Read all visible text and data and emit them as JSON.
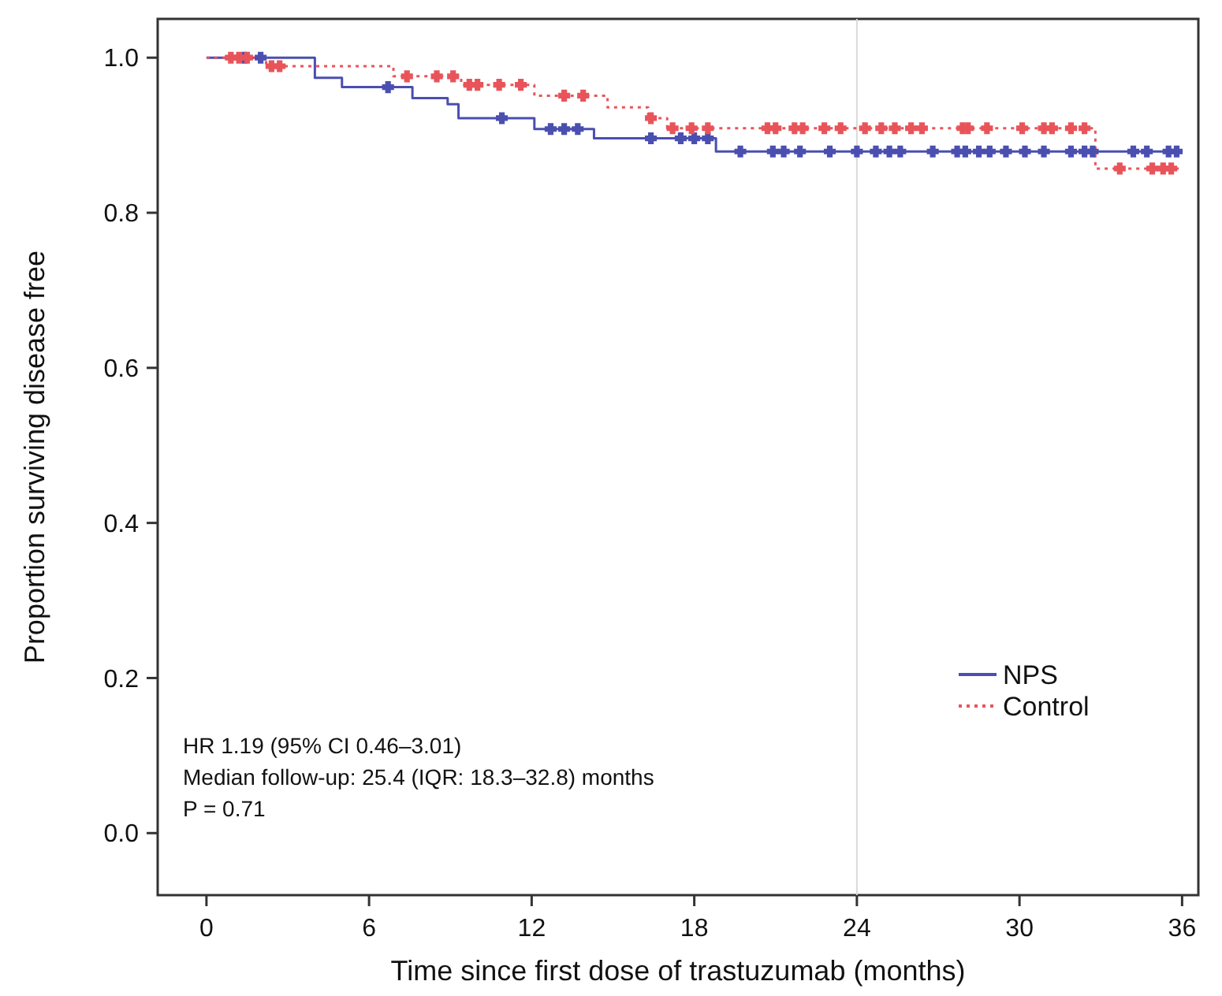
{
  "chart_data": {
    "type": "step",
    "xlabel": "Time since first dose of trastuzumab (months)",
    "ylabel": "Proportion surviving disease free",
    "xlim": [
      -1.8,
      36.6
    ],
    "xticks": [
      0,
      6,
      12,
      18,
      24,
      30,
      36
    ],
    "ylim": [
      -0.08,
      1.05
    ],
    "yticks": [
      {
        "value": 0,
        "label": "0.0"
      },
      {
        "value": 0.2,
        "label": "0.2"
      },
      {
        "value": 0.4,
        "label": "0.4"
      },
      {
        "value": 0.6,
        "label": "0.6"
      },
      {
        "value": 0.8,
        "label": "0.8"
      },
      {
        "value": 1,
        "label": "1.0"
      }
    ],
    "grid": false,
    "legend": "right",
    "ref_lines": [
      {
        "axis": "x",
        "value": 24,
        "color": "#d9d9d9"
      }
    ],
    "annotations": [
      "HR 1.19 (95% CI 0.46–3.01)",
      "Median follow-up: 25.4 (IQR: 18.3–32.8) months",
      "P = 0.71"
    ],
    "series": [
      {
        "name": "NPS",
        "color": "#4a4fb0",
        "line_style": "solid",
        "marker": "none",
        "x": [
          0,
          4.0,
          5.0,
          7.6,
          8.9,
          9.3,
          12.1,
          14.3,
          18.8,
          36
        ],
        "values": [
          1,
          0.974,
          0.962,
          0.948,
          0.94,
          0.922,
          0.908,
          0.896,
          0.879,
          0.879
        ]
      },
      {
        "name": "Control",
        "color": "#e8545a",
        "line_style": "dotted",
        "marker": "none",
        "x": [
          0,
          2.2,
          6.9,
          9.4,
          12.1,
          14.8,
          16.3,
          17.0,
          32.8,
          36
        ],
        "values": [
          1,
          0.989,
          0.976,
          0.965,
          0.951,
          0.936,
          0.922,
          0.909,
          0.857,
          0.857
        ]
      },
      {
        "type": "scatter",
        "color": "#4a4fb0",
        "marker": "cross",
        "x": [
          1.4,
          2.0,
          6.7,
          10.9,
          12.7,
          13.2,
          13.7,
          16.4,
          17.5,
          18.0,
          18.5,
          19.7,
          20.9,
          21.3,
          21.9,
          23.0,
          24.0,
          24.7,
          25.2,
          25.6,
          26.8,
          27.7,
          28.0,
          28.5,
          28.9,
          29.5,
          30.2,
          30.9,
          31.9,
          32.4,
          32.7,
          34.2,
          34.7,
          35.5,
          35.8
        ],
        "values": [
          1,
          1,
          0.962,
          0.922,
          0.908,
          0.908,
          0.908,
          0.896,
          0.896,
          0.896,
          0.896,
          0.879,
          0.879,
          0.879,
          0.879,
          0.879,
          0.879,
          0.879,
          0.879,
          0.879,
          0.879,
          0.879,
          0.879,
          0.879,
          0.879,
          0.879,
          0.879,
          0.879,
          0.879,
          0.879,
          0.879,
          0.879,
          0.879,
          0.879,
          0.879
        ]
      },
      {
        "type": "scatter",
        "color": "#e8545a",
        "marker": "cross",
        "x": [
          0.9,
          1.2,
          1.5,
          2.4,
          2.7,
          7.4,
          8.5,
          9.1,
          9.7,
          10.0,
          10.8,
          11.6,
          13.2,
          13.9,
          16.4,
          17.2,
          17.9,
          18.5,
          20.7,
          21.0,
          21.7,
          22.0,
          22.8,
          23.4,
          24.3,
          24.9,
          25.4,
          26.0,
          26.4,
          27.9,
          28.1,
          28.8,
          30.1,
          30.9,
          31.2,
          31.9,
          32.4,
          33.7,
          34.9,
          35.3,
          35.6
        ],
        "values": [
          1,
          1,
          1,
          0.989,
          0.989,
          0.976,
          0.976,
          0.976,
          0.965,
          0.965,
          0.965,
          0.965,
          0.951,
          0.951,
          0.922,
          0.909,
          0.909,
          0.909,
          0.909,
          0.909,
          0.909,
          0.909,
          0.909,
          0.909,
          0.909,
          0.909,
          0.909,
          0.909,
          0.909,
          0.909,
          0.909,
          0.909,
          0.909,
          0.909,
          0.909,
          0.909,
          0.909,
          0.857,
          0.857,
          0.857,
          0.857
        ]
      }
    ]
  }
}
